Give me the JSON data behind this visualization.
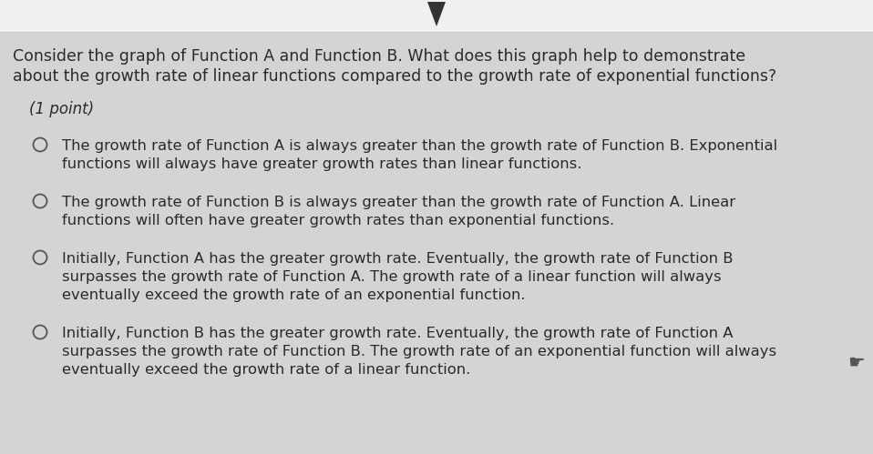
{
  "bg_color": "#d4d4d4",
  "top_bar_color": "#f0f0f0",
  "question_text_l1": "Consider the graph of Function A and Function B. What does this graph help to demonstrate",
  "question_text_l2": "about the growth rate of linear functions compared to the growth rate of exponential functions?",
  "point_label": "(1 point)",
  "options": [
    {
      "lines": [
        "The growth rate of Function A is always greater than the growth rate of Function B. Exponential",
        "functions will always have greater growth rates than linear functions."
      ]
    },
    {
      "lines": [
        "The growth rate of Function B is always greater than the growth rate of Function A. Linear",
        "functions will often have greater growth rates than exponential functions."
      ]
    },
    {
      "lines": [
        "Initially, Function A has the greater growth rate. Eventually, the growth rate of Function B",
        "surpasses the growth rate of Function A. The growth rate of a linear function will always",
        "eventually exceed the growth rate of an exponential function."
      ]
    },
    {
      "lines": [
        "Initially, Function B has the greater growth rate. Eventually, the growth rate of Function A",
        "surpasses the growth rate of Function B. The growth rate of an exponential function will always",
        "eventually exceed the growth rate of a linear function."
      ]
    }
  ],
  "text_color": "#2a2a2a",
  "circle_color": "#555555",
  "fig_width": 9.58,
  "fig_height": 4.99,
  "dpi": 100
}
